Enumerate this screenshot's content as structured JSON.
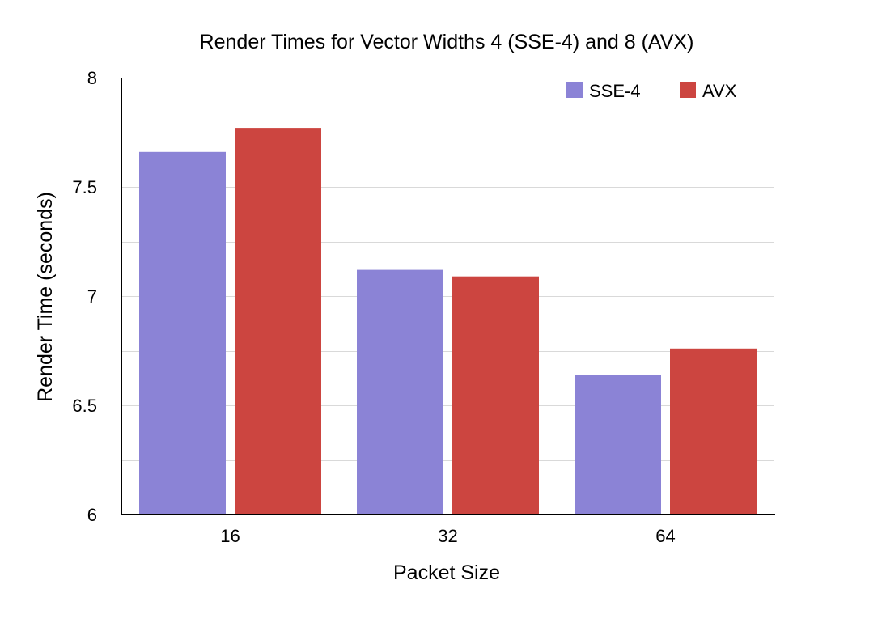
{
  "chart_data": {
    "type": "bar",
    "title": "Render Times for Vector Widths 4 (SSE-4) and 8 (AVX)",
    "xlabel": "Packet Size",
    "ylabel": "Render Time (seconds)",
    "categories": [
      "16",
      "32",
      "64"
    ],
    "series": [
      {
        "name": "SSE-4",
        "color": "#8b83d6",
        "values": [
          7.66,
          7.12,
          6.64
        ]
      },
      {
        "name": "AVX",
        "color": "#cc4540",
        "values": [
          7.77,
          7.09,
          6.76
        ]
      }
    ],
    "ylim": [
      6,
      8
    ],
    "yticks": [
      6,
      6.5,
      7,
      7.5,
      8
    ],
    "ytick_labels": [
      "6",
      "6.5",
      "7",
      "7.5",
      "8"
    ],
    "minor_gridlines": [
      6.25,
      6.75,
      7.25,
      7.75
    ],
    "grid": true,
    "legend_position": "top-right"
  }
}
